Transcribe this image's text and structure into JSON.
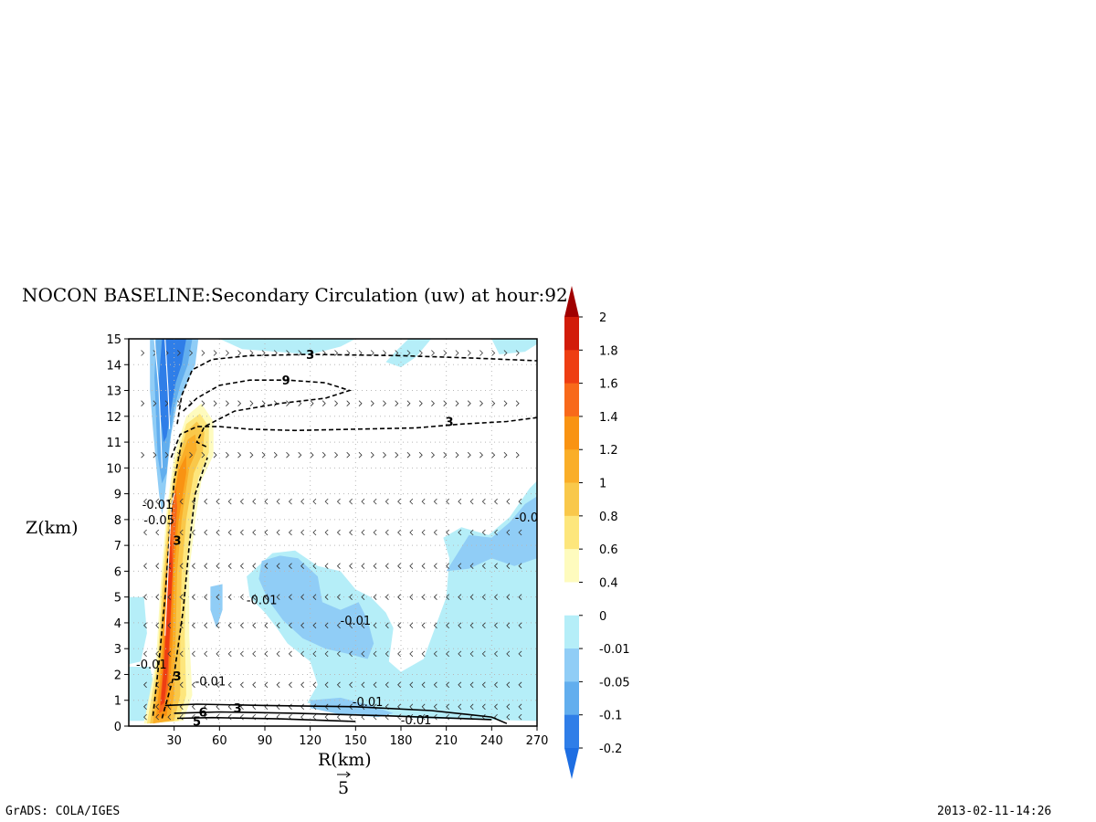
{
  "chart_data": {
    "type": "heatmap",
    "title": "NOCON BASELINE:Secondary Circulation (uw) at hour:92",
    "xlabel": "R(km)",
    "ylabel": "Z(km)",
    "xlim": [
      0,
      270
    ],
    "ylim": [
      0,
      15
    ],
    "x_ticks": [
      "30",
      "60",
      "90",
      "120",
      "150",
      "180",
      "210",
      "240",
      "270"
    ],
    "y_ticks": [
      "0",
      "1",
      "2",
      "3",
      "4",
      "5",
      "6",
      "7",
      "8",
      "9",
      "10",
      "11",
      "12",
      "13",
      "14",
      "15"
    ],
    "grid": true,
    "vector_reference": "5",
    "colorbar": {
      "labels": [
        "2",
        "1.8",
        "1.6",
        "1.4",
        "1.2",
        "1",
        "0.8",
        "0.6",
        "0.4",
        "0",
        "-0.01",
        "-0.05",
        "-0.1",
        "-0.2"
      ],
      "colors": [
        "#a00000",
        "#d21c0a",
        "#ee3e12",
        "#f8691a",
        "#f99312",
        "#faae28",
        "#f9c84a",
        "#fde67c",
        "#fefbbe",
        "#ffffff",
        "#b5eef8",
        "#90cdf6",
        "#62aeee",
        "#2f7ee8",
        "#1e6ee2"
      ],
      "extend": "both"
    },
    "contour_labels": [
      {
        "text": "3",
        "x": 120,
        "z": 14.4
      },
      {
        "text": "9",
        "x": 104,
        "z": 13.4
      },
      {
        "text": "3",
        "x": 212,
        "z": 11.8
      },
      {
        "text": "3",
        "x": 32,
        "z": 7.2
      },
      {
        "text": "3",
        "x": 32,
        "z": 1.95
      },
      {
        "text": "3",
        "x": 72,
        "z": 0.7
      },
      {
        "text": "6",
        "x": 49,
        "z": 0.55
      },
      {
        "text": "5",
        "x": 45,
        "z": 0.2
      },
      {
        "text": "-0.01",
        "x": 19,
        "z": 8.6
      },
      {
        "text": "-0.05",
        "x": 20,
        "z": 8.0
      },
      {
        "text": "-0.01",
        "x": 88,
        "z": 4.9
      },
      {
        "text": "-0.01",
        "x": 150,
        "z": 4.1
      },
      {
        "text": "-0.01",
        "x": 15,
        "z": 2.4
      },
      {
        "text": "-0.01",
        "x": 54,
        "z": 1.75
      },
      {
        "text": "-0.01",
        "x": 158,
        "z": 0.95
      },
      {
        "text": "-0.01",
        "x": 190,
        "z": 0.25
      },
      {
        "text": "-0.0",
        "x": 263,
        "z": 8.1
      }
    ]
  },
  "footer": {
    "left": "GrADS: COLA/IGES",
    "right": "2013-02-11-14:26"
  }
}
